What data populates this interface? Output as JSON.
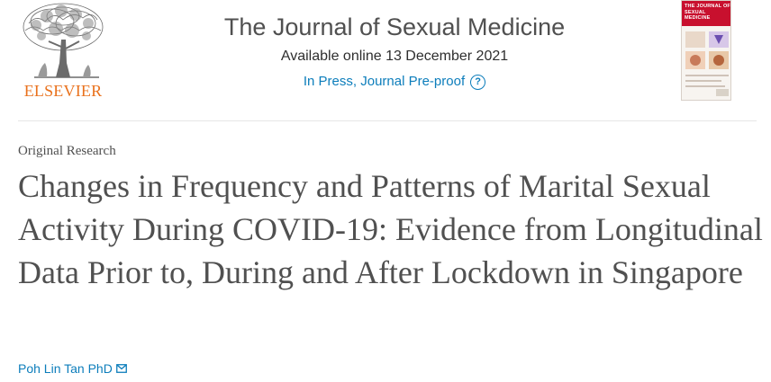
{
  "publisher": {
    "name": "ELSEVIER",
    "logo_icon": "elsevier-tree-icon",
    "brand_color": "#e9711c"
  },
  "journal": {
    "title": "The Journal of Sexual Medicine",
    "available_online": "Available online 13 December 2021",
    "in_press": "In Press, Journal Pre-proof",
    "help_icon": "question-circle-icon",
    "cover_title": "THE JOURNAL OF SEXUAL MEDICINE",
    "link_color": "#0c7dbb"
  },
  "article": {
    "type": "Original Research",
    "title": "Changes in Frequency and Patterns of Marital Sexual Activity During COVID-19: Evidence from Longitudinal Data Prior to, During and After Lockdown in Singapore",
    "author": "Poh Lin Tan PhD",
    "author_icon": "envelope-icon"
  }
}
